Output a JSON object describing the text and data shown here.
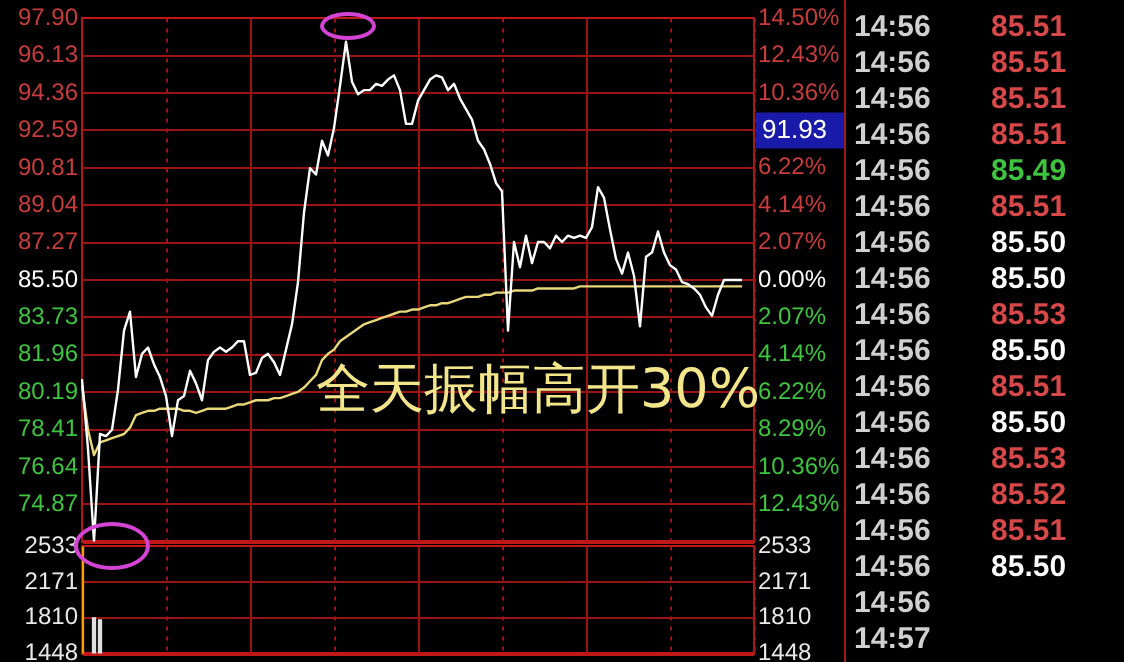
{
  "chart_data": [
    {
      "type": "line",
      "categories": [
        null,
        null,
        null,
        null,
        null,
        null,
        null,
        null,
        null,
        null,
        null,
        null,
        null,
        null,
        null,
        null,
        null,
        null,
        null,
        null,
        null,
        null,
        null,
        null,
        null,
        null,
        null,
        null,
        null,
        null,
        null,
        null,
        null,
        null,
        null,
        null,
        null,
        null,
        null,
        null,
        null,
        null,
        null,
        null,
        null,
        null,
        null,
        null,
        null,
        null,
        null,
        null,
        null,
        null,
        null,
        null,
        null,
        null,
        null,
        null,
        null,
        null,
        null,
        null,
        null,
        null,
        null,
        null,
        null,
        null,
        null,
        null,
        null,
        null,
        null,
        null,
        null,
        null,
        null,
        null,
        null,
        null,
        null,
        null,
        null,
        null,
        null,
        null,
        null,
        null,
        null,
        null,
        null,
        null,
        null,
        null,
        null,
        null,
        null,
        null,
        null,
        null,
        null,
        null,
        null,
        null,
        null,
        null,
        null,
        null,
        null,
        null,
        null
      ],
      "series": [
        {
          "color": "#ffffff",
          "values": [
            80.8,
            77.5,
            73.1,
            78.2,
            78.1,
            78.4,
            80.3,
            83.1,
            84.0,
            80.9,
            82.0,
            82.3,
            81.5,
            80.9,
            80.0,
            78.1,
            79.8,
            80.0,
            81.2,
            80.6,
            79.8,
            81.7,
            82.1,
            82.3,
            82.1,
            82.3,
            82.6,
            82.6,
            81.0,
            81.1,
            81.8,
            82.0,
            81.6,
            81.0,
            82.2,
            83.4,
            85.4,
            88.7,
            90.8,
            90.5,
            92.1,
            91.4,
            92.7,
            94.7,
            96.8,
            94.9,
            94.3,
            94.5,
            94.5,
            94.8,
            94.7,
            95.0,
            95.2,
            94.5,
            92.9,
            92.9,
            94.0,
            94.5,
            95.0,
            95.2,
            95.1,
            94.5,
            94.8,
            94.1,
            93.6,
            93.1,
            92.1,
            91.7,
            91.0,
            90.1,
            89.7,
            83.1,
            87.3,
            86.1,
            87.6,
            86.3,
            87.3,
            87.3,
            87.0,
            87.6,
            87.3,
            87.6,
            87.5,
            87.6,
            87.5,
            88.0,
            89.9,
            89.4,
            87.9,
            86.5,
            85.8,
            86.8,
            85.7,
            83.3,
            86.6,
            86.8,
            87.8,
            86.8,
            86.2,
            86.0,
            85.4,
            85.3,
            85.1,
            84.8,
            84.2,
            83.8,
            84.8,
            85.5,
            85.5,
            85.5,
            85.5,
            null,
            null
          ]
        },
        {
          "color": "#e8d87a",
          "values": [
            80.5,
            78.4,
            77.2,
            77.8,
            77.9,
            78.0,
            78.1,
            78.2,
            78.5,
            79.1,
            79.2,
            79.3,
            79.3,
            79.4,
            79.4,
            79.4,
            79.4,
            79.3,
            79.3,
            79.2,
            79.3,
            79.4,
            79.4,
            79.4,
            79.4,
            79.5,
            79.6,
            79.6,
            79.7,
            79.8,
            79.8,
            79.8,
            79.9,
            79.9,
            80.0,
            80.1,
            80.2,
            80.4,
            80.7,
            81.0,
            81.7,
            82.0,
            82.2,
            82.6,
            82.8,
            83.0,
            83.2,
            83.4,
            83.5,
            83.6,
            83.7,
            83.8,
            83.9,
            84.0,
            84.0,
            84.1,
            84.1,
            84.2,
            84.3,
            84.3,
            84.4,
            84.4,
            84.5,
            84.6,
            84.7,
            84.7,
            84.7,
            84.8,
            84.8,
            84.9,
            84.9,
            84.9,
            85.0,
            85.0,
            85.0,
            85.0,
            85.1,
            85.1,
            85.1,
            85.1,
            85.1,
            85.1,
            85.1,
            85.2,
            85.2,
            85.2,
            85.2,
            85.2,
            85.2,
            85.2,
            85.2,
            85.2,
            85.2,
            85.2,
            85.2,
            85.2,
            85.2,
            85.2,
            85.2,
            85.2,
            85.2,
            85.2,
            85.2,
            85.2,
            85.2,
            85.2,
            85.2,
            85.2,
            85.2,
            85.2,
            85.2,
            null,
            null
          ]
        }
      ],
      "ylim": [
        73.1,
        97.9
      ],
      "yticks": [
        {
          "value": 97.9,
          "label": "97.90"
        },
        {
          "value": 96.13,
          "label": "96.13"
        },
        {
          "value": 94.36,
          "label": "94.36"
        },
        {
          "value": 92.59,
          "label": "92.59"
        },
        {
          "value": 90.81,
          "label": "90.81"
        },
        {
          "value": 89.04,
          "label": "89.04"
        },
        {
          "value": 87.27,
          "label": "87.27"
        },
        {
          "value": 85.5,
          "label": "85.50"
        },
        {
          "value": 83.73,
          "label": "83.73"
        },
        {
          "value": 81.96,
          "label": "81.96"
        },
        {
          "value": 80.19,
          "label": "80.19"
        },
        {
          "value": 78.41,
          "label": "78.41"
        },
        {
          "value": 76.64,
          "label": "76.64"
        },
        {
          "value": 74.87,
          "label": "74.87"
        },
        {
          "value": 73.1,
          "label": null
        }
      ],
      "y2lim": [
        -14.5,
        14.5
      ],
      "y2ticks": [
        {
          "value": 14.5,
          "label": "14.50%"
        },
        {
          "value": 12.43,
          "label": "12.43%"
        },
        {
          "value": 10.36,
          "label": "10.36%"
        },
        {
          "value": 8.29,
          "label": null
        },
        {
          "value": 6.22,
          "label": "6.22%"
        },
        {
          "value": 4.14,
          "label": "4.14%"
        },
        {
          "value": 2.07,
          "label": "2.07%"
        },
        {
          "value": 0,
          "label": "0.00%"
        },
        {
          "value": -2.07,
          "label": "2.07%"
        },
        {
          "value": -4.14,
          "label": "4.14%"
        },
        {
          "value": -6.22,
          "label": "6.22%"
        },
        {
          "value": -8.29,
          "label": "8.29%"
        },
        {
          "value": -10.36,
          "label": "10.36%"
        },
        {
          "value": -12.43,
          "label": "12.43%"
        },
        {
          "value": -14.5,
          "label": null
        }
      ],
      "grid": true,
      "annotations": [
        "全天振幅高开30%",
        "91.93"
      ]
    },
    {
      "type": "bar",
      "categories": [
        null,
        null,
        null,
        null,
        null,
        null,
        null,
        null,
        null,
        null,
        null,
        null,
        null,
        null,
        null,
        null,
        null,
        null,
        null,
        null,
        null,
        null,
        null,
        null,
        null,
        null,
        null,
        null,
        null,
        null,
        null,
        null,
        null,
        null,
        null,
        null,
        null,
        null,
        null,
        null,
        null,
        null,
        null,
        null,
        null,
        null,
        null,
        null,
        null,
        null,
        null,
        null,
        null,
        null,
        null,
        null,
        null,
        null,
        null,
        null,
        null,
        null,
        null,
        null,
        null,
        null,
        null,
        null,
        null,
        null,
        null,
        null,
        null,
        null,
        null,
        null,
        null,
        null,
        null,
        null,
        null,
        null,
        null,
        null,
        null,
        null,
        null,
        null,
        null,
        null,
        null,
        null,
        null,
        null,
        null,
        null,
        null,
        null,
        null,
        null,
        null,
        null,
        null,
        null,
        null,
        null,
        null,
        null,
        null,
        null,
        null,
        null,
        null
      ],
      "values": [
        2533,
        null,
        1810,
        1790,
        null,
        null,
        null,
        null,
        null,
        null,
        null,
        null,
        null,
        null,
        null,
        null,
        null,
        null,
        null,
        null,
        null,
        null,
        null,
        null,
        null,
        null,
        null,
        null,
        null,
        null,
        null,
        null,
        null,
        null,
        null,
        null,
        null,
        null,
        null,
        null,
        null,
        null,
        null,
        null,
        null,
        null,
        null,
        null,
        null,
        null,
        null,
        null,
        null,
        null,
        null,
        null,
        null,
        null,
        null,
        null,
        null,
        null,
        null,
        null,
        null,
        null,
        null,
        null,
        null,
        null,
        null,
        null,
        null,
        null,
        null,
        null,
        null,
        null,
        null,
        null,
        null,
        null,
        null,
        null,
        null,
        null,
        null,
        null,
        null,
        null,
        null,
        null,
        null,
        null,
        null,
        null,
        null,
        null,
        null,
        null,
        null,
        null,
        null,
        null,
        null,
        null,
        null,
        null,
        null,
        null,
        null,
        null,
        null
      ],
      "colors": [
        "#ff9a00",
        null,
        "#e0e0e0",
        "#e0e0e0",
        null,
        null,
        null,
        null,
        null,
        null,
        null,
        null,
        null,
        null,
        null,
        null,
        null,
        null,
        null,
        null,
        null,
        null,
        null,
        null,
        null,
        null,
        null,
        null,
        null,
        null,
        null,
        null,
        null,
        null,
        null,
        null,
        null,
        null,
        null,
        null,
        null,
        null,
        null,
        null,
        null,
        null,
        null,
        null,
        null,
        null,
        null,
        null,
        null,
        null,
        null,
        null,
        null,
        null,
        null,
        null,
        null,
        null,
        null,
        null,
        null,
        null,
        null,
        null,
        null,
        null,
        null,
        null,
        null,
        null,
        null,
        null,
        null,
        null,
        null,
        null,
        null,
        null,
        null,
        null,
        null,
        null,
        null,
        null,
        null,
        null,
        null,
        null,
        null,
        null,
        null,
        null,
        null,
        null,
        null,
        null,
        null,
        null,
        null,
        null,
        null,
        null,
        null,
        null,
        null,
        null,
        null,
        null,
        null
      ],
      "ylim": [
        1448,
        2533
      ],
      "yticks": [
        2533,
        2171,
        1810,
        1448
      ],
      "y2lim": [
        1448,
        2533
      ],
      "y2ticks": [
        2533,
        2171,
        1810,
        1448
      ],
      "grid": true
    },
    {
      "type": "other",
      "annotations": [
        "14:56 85.51",
        "14:56 85.51",
        "14:56 85.51",
        "14:56 85.51",
        "14:56 85.49",
        "14:56 85.51",
        "14:56 85.50",
        "14:56 85.50",
        "14:56 85.53",
        "14:56 85.50",
        "14:56 85.51",
        "14:56 85.50",
        "14:56 85.53",
        "14:56 85.52",
        "14:56 85.51",
        "14:56 85.50",
        "14:56",
        "14:57"
      ],
      "colors": [
        "#d84848",
        "#d84848",
        "#d84848",
        "#d84848",
        "#3ec43e",
        "#d84848",
        "#ffffff",
        "#ffffff",
        "#d84848",
        "#ffffff",
        "#d84848",
        "#ffffff",
        "#d84848",
        "#d84848",
        "#d84848",
        "#ffffff",
        null,
        null
      ]
    }
  ]
}
